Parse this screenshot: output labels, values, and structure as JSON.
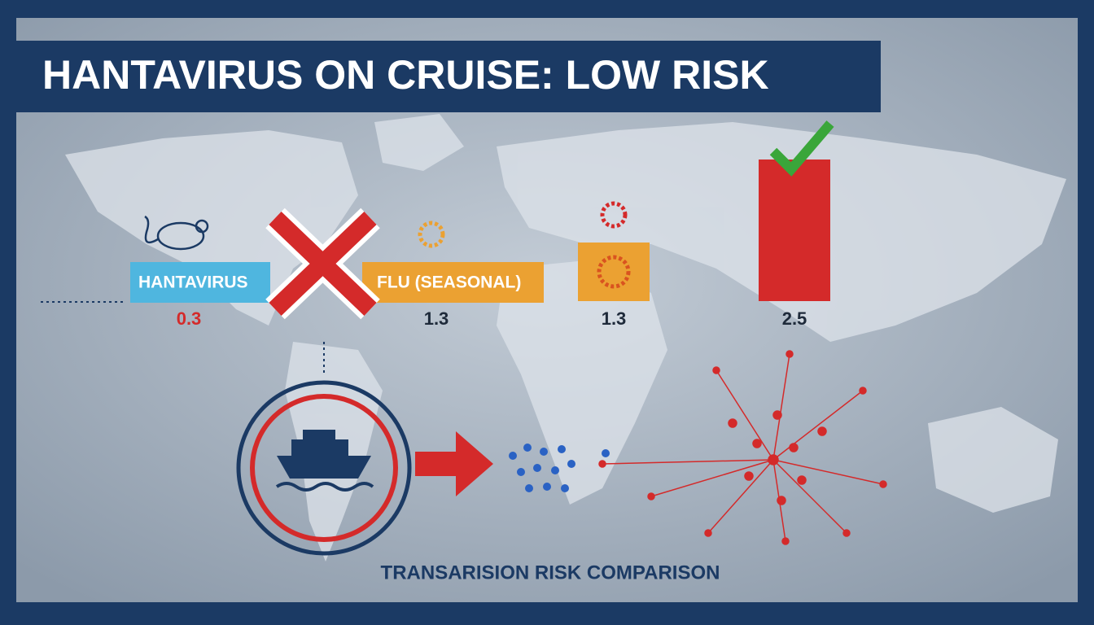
{
  "title": "HANTAVIRUS ON CRUISE: LOW RISK",
  "items": [
    {
      "label": "HANTAVIRUS",
      "value": 0.3
    },
    {
      "label": "FLU (SEASONAL)",
      "value": 1.3
    },
    {
      "value": 1.3
    },
    {
      "value": 2.5
    }
  ],
  "caption": "TRANSARISION RISK COMPARISON"
}
